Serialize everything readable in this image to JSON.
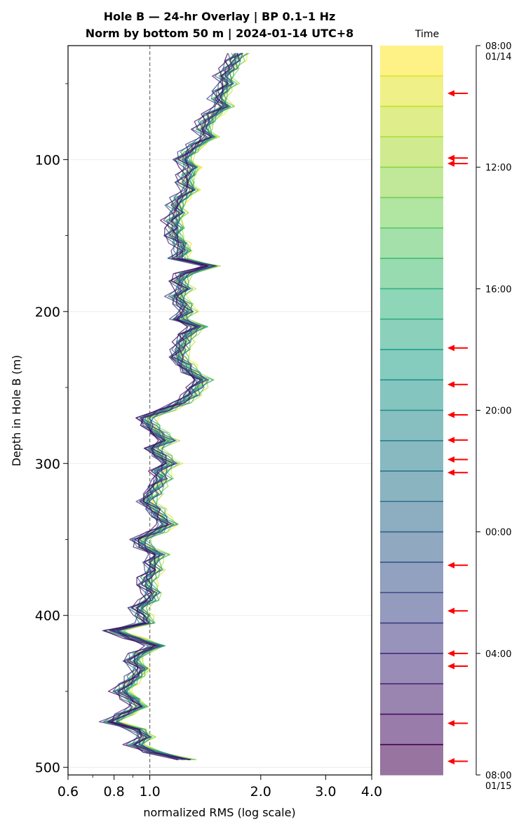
{
  "chart_data": {
    "type": "line",
    "title": "Hole B — 24-hr Overlay  |  BP 0.1–1 Hz",
    "subtitle": "Norm by bottom 50 m  |  2024-01-14 UTC+8",
    "xlabel": "normalized RMS  (log scale)",
    "ylabel": "Depth in Hole B (m)",
    "x_scale": "log",
    "xlim": [
      0.6,
      4.0
    ],
    "ylim": [
      505,
      25
    ],
    "x_ticks": [
      "0.6",
      "0.8",
      "1.0",
      "2.0",
      "3.0",
      "4.0"
    ],
    "y_ticks": [
      "100",
      "200",
      "300",
      "400",
      "500"
    ],
    "reference_line_x": 1.0,
    "grid": true,
    "colormap": "viridis",
    "n_series": 24,
    "series_note_hours": [
      "08:00",
      "09:00",
      "10:00",
      "11:00",
      "12:00",
      "13:00",
      "14:00",
      "15:00",
      "16:00",
      "17:00",
      "18:00",
      "19:00",
      "20:00",
      "21:00",
      "22:00",
      "23:00",
      "00:00",
      "01:00",
      "02:00",
      "03:00",
      "04:00",
      "05:00",
      "06:00",
      "07:00"
    ],
    "depth": [
      30,
      35,
      40,
      45,
      50,
      55,
      60,
      65,
      70,
      75,
      80,
      85,
      90,
      95,
      100,
      105,
      110,
      115,
      120,
      125,
      130,
      135,
      140,
      145,
      150,
      155,
      160,
      165,
      170,
      175,
      180,
      185,
      190,
      195,
      200,
      205,
      210,
      215,
      220,
      225,
      230,
      235,
      240,
      245,
      250,
      255,
      260,
      265,
      270,
      275,
      280,
      285,
      290,
      295,
      300,
      305,
      310,
      315,
      320,
      325,
      330,
      335,
      340,
      345,
      350,
      355,
      360,
      365,
      370,
      375,
      380,
      385,
      390,
      395,
      400,
      405,
      410,
      415,
      420,
      425,
      430,
      435,
      440,
      445,
      450,
      455,
      460,
      465,
      470,
      475,
      480,
      485,
      490,
      495
    ],
    "median_profile": [
      1.73,
      1.68,
      1.64,
      1.58,
      1.62,
      1.55,
      1.52,
      1.58,
      1.47,
      1.42,
      1.38,
      1.44,
      1.33,
      1.27,
      1.22,
      1.29,
      1.26,
      1.24,
      1.28,
      1.21,
      1.17,
      1.19,
      1.15,
      1.17,
      1.15,
      1.2,
      1.22,
      1.18,
      1.45,
      1.24,
      1.19,
      1.23,
      1.17,
      1.22,
      1.25,
      1.19,
      1.34,
      1.25,
      1.22,
      1.2,
      1.18,
      1.23,
      1.28,
      1.38,
      1.32,
      1.28,
      1.2,
      1.08,
      0.96,
      0.99,
      1.04,
      1.11,
      1.01,
      1.06,
      1.12,
      1.05,
      1.07,
      1.03,
      1.01,
      0.97,
      1.02,
      1.05,
      1.11,
      1.03,
      0.93,
      0.96,
      1.05,
      1.0,
      1.02,
      0.98,
      0.97,
      1.01,
      0.99,
      0.92,
      0.95,
      0.97,
      0.79,
      0.9,
      1.04,
      0.93,
      0.89,
      0.94,
      0.91,
      0.87,
      0.83,
      0.89,
      0.93,
      0.85,
      0.78,
      0.92,
      0.97,
      0.91,
      1.02,
      1.25
    ],
    "colorbar": {
      "title": "Time",
      "tick_labels": [
        "08:00\n01/14",
        "12:00",
        "16:00",
        "20:00",
        "00:00",
        "04:00",
        "08:00\n01/15"
      ],
      "arrow_color": "#ff0000",
      "arrow_times_hours_from_start": [
        1.57,
        3.7,
        3.88,
        9.95,
        11.15,
        12.15,
        12.98,
        13.62,
        14.05,
        17.1,
        18.6,
        20.0,
        20.42,
        22.3,
        23.55
      ]
    }
  }
}
